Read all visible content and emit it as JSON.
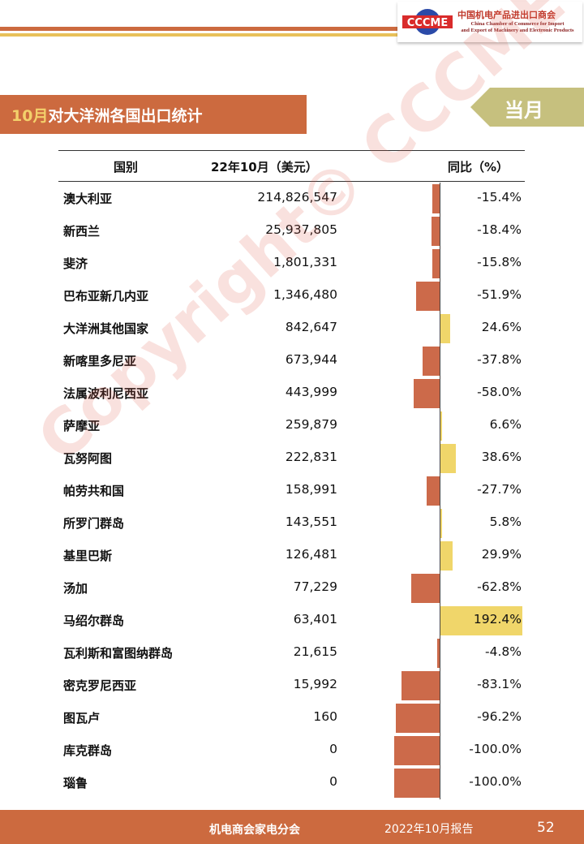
{
  "header": {
    "logo_text": "CCCME",
    "org_cn": "中国机电产品进出口商会",
    "org_en_line1": "China Chamber of Commerce for Import",
    "org_en_line2": "and Export of Machinery and Electronic Products"
  },
  "title": {
    "month": "10月",
    "text": "对大洋洲各国出口统计"
  },
  "tag": "当月",
  "table": {
    "col_country": "国别",
    "col_value": "22年10月（美元）",
    "col_yoy": "同比（%）",
    "rows": [
      {
        "country": "澳大利亚",
        "value": "214,826,547",
        "yoy": "-15.4%"
      },
      {
        "country": "新西兰",
        "value": "25,937,805",
        "yoy": "-18.4%"
      },
      {
        "country": "斐济",
        "value": "1,801,331",
        "yoy": "-15.8%"
      },
      {
        "country": "巴布亚新几内亚",
        "value": "1,346,480",
        "yoy": "-51.9%"
      },
      {
        "country": "大洋洲其他国家",
        "value": "842,647",
        "yoy": "24.6%"
      },
      {
        "country": "新喀里多尼亚",
        "value": "673,944",
        "yoy": "-37.8%"
      },
      {
        "country": "法属波利尼西亚",
        "value": "443,999",
        "yoy": "-58.0%"
      },
      {
        "country": "萨摩亚",
        "value": "259,879",
        "yoy": "6.6%"
      },
      {
        "country": "瓦努阿图",
        "value": "222,831",
        "yoy": "38.6%"
      },
      {
        "country": "帕劳共和国",
        "value": "158,991",
        "yoy": "-27.7%"
      },
      {
        "country": "所罗门群岛",
        "value": "143,551",
        "yoy": "5.8%"
      },
      {
        "country": "基里巴斯",
        "value": "126,481",
        "yoy": "29.9%"
      },
      {
        "country": "汤加",
        "value": "77,229",
        "yoy": "-62.8%"
      },
      {
        "country": "马绍尔群岛",
        "value": "63,401",
        "yoy": "192.4%"
      },
      {
        "country": "瓦利斯和富图纳群岛",
        "value": "21,615",
        "yoy": "-4.8%"
      },
      {
        "country": "密克罗尼西亚",
        "value": "15,992",
        "yoy": "-83.1%"
      },
      {
        "country": "图瓦卢",
        "value": "160",
        "yoy": "-96.2%"
      },
      {
        "country": "库克群岛",
        "value": "0",
        "yoy": "-100.0%"
      },
      {
        "country": "瑙鲁",
        "value": "0",
        "yoy": "-100.0%"
      }
    ]
  },
  "yoy_values": [
    -15.4,
    -18.4,
    -15.8,
    -51.9,
    24.6,
    -37.8,
    -58.0,
    6.6,
    38.6,
    -27.7,
    5.8,
    29.9,
    -62.8,
    192.4,
    -4.8,
    -83.1,
    -96.2,
    -100.0,
    -100.0
  ],
  "watermark": "Copyright© CCCME",
  "footer": {
    "org": "机电商会家电分会",
    "report": "2022年10月报告",
    "page": "52"
  },
  "colors": {
    "accent": "#cc6a3f",
    "negative_bar": "#cc6a4a",
    "positive_bar": "#f0d66a",
    "tag": "#c6c07e"
  }
}
